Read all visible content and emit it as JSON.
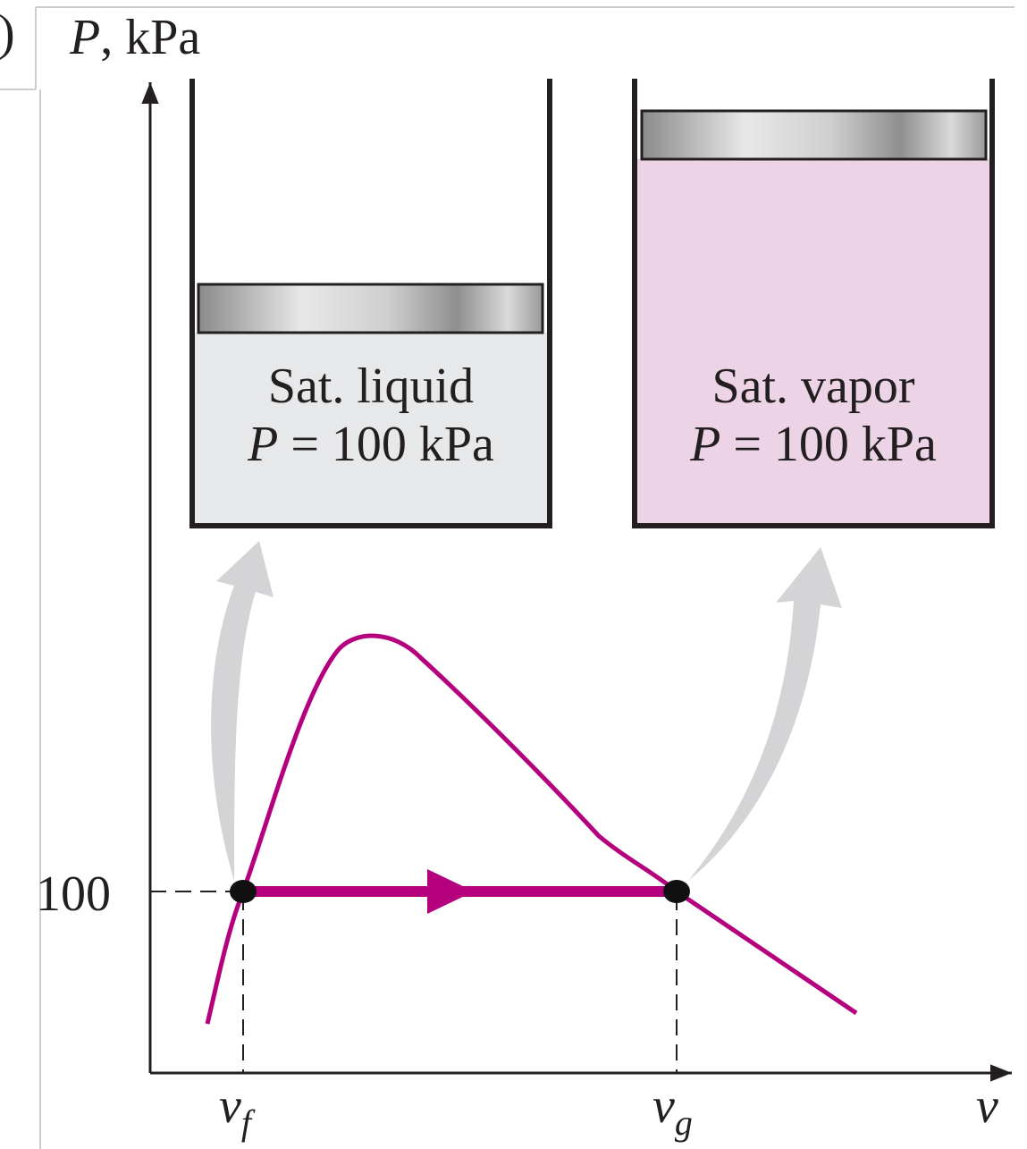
{
  "figure_fragment": ")",
  "axes": {
    "y_label": {
      "symbol": "P",
      "unit": ", kPa"
    },
    "y_tick": "100",
    "x_ticks": [
      {
        "symbol": "v",
        "subscript": "f"
      },
      {
        "symbol": "v",
        "subscript": "g"
      }
    ],
    "x_label": "v"
  },
  "states": [
    {
      "name": "Sat. liquid",
      "pressure": {
        "symbol": "P",
        "text": " = 100 kPa"
      }
    },
    {
      "name": "Sat. vapor",
      "pressure": {
        "symbol": "P",
        "text": " = 100 kPa"
      }
    }
  ]
}
